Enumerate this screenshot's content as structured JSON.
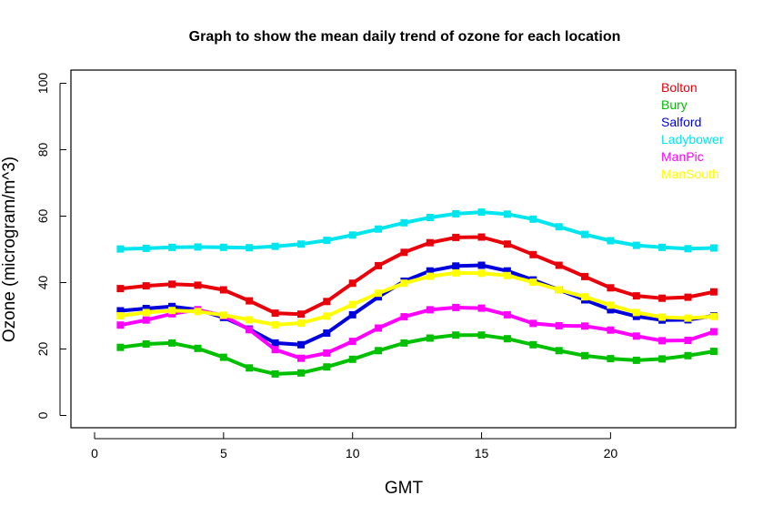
{
  "chart_data": {
    "type": "line",
    "title": "Graph to show the mean daily trend of ozone for each location",
    "xlabel": "GMT",
    "ylabel": "Ozone (microgram/m^3)",
    "xlim": [
      0,
      25
    ],
    "ylim": [
      0,
      100
    ],
    "xticks": [
      "0",
      "5",
      "10",
      "15",
      "20"
    ],
    "yticks": [
      "0",
      "20",
      "40",
      "60",
      "80",
      "100"
    ],
    "grid": false,
    "legend_position": "top-right",
    "x": [
      1,
      2,
      3,
      4,
      5,
      6,
      7,
      8,
      9,
      10,
      11,
      12,
      13,
      14,
      15,
      16,
      17,
      18,
      19,
      20,
      21,
      22,
      23,
      24
    ],
    "series": [
      {
        "name": "Bolton",
        "color": "#e8000b",
        "values": [
          38.2,
          39.0,
          39.5,
          39.2,
          37.8,
          34.5,
          30.8,
          30.5,
          34.3,
          39.8,
          45.1,
          49.1,
          52.0,
          53.6,
          53.7,
          51.6,
          48.4,
          45.2,
          41.8,
          38.4,
          36.0,
          35.3,
          35.6,
          37.2
        ]
      },
      {
        "name": "Bury",
        "color": "#00c000",
        "values": [
          20.5,
          21.5,
          21.8,
          20.2,
          17.5,
          14.3,
          12.5,
          12.8,
          14.6,
          16.9,
          19.5,
          21.8,
          23.3,
          24.2,
          24.2,
          23.1,
          21.3,
          19.5,
          18.0,
          17.1,
          16.6,
          17.0,
          18.0,
          19.3
        ]
      },
      {
        "name": "Salford",
        "color": "#0000dd",
        "values": [
          31.5,
          32.2,
          32.8,
          31.8,
          29.5,
          26.0,
          21.8,
          21.3,
          24.8,
          30.3,
          35.7,
          40.4,
          43.5,
          45.0,
          45.2,
          43.5,
          40.8,
          37.8,
          34.8,
          31.8,
          29.8,
          28.7,
          28.8,
          30.0
        ]
      },
      {
        "name": "Ladybower",
        "color": "#00e5ee",
        "values": [
          50.1,
          50.3,
          50.6,
          50.7,
          50.6,
          50.5,
          50.9,
          51.6,
          52.7,
          54.3,
          56.1,
          58.0,
          59.6,
          60.7,
          61.2,
          60.6,
          59.1,
          56.8,
          54.5,
          52.6,
          51.2,
          50.6,
          50.2,
          50.4
        ]
      },
      {
        "name": "ManPic",
        "color": "#ff00ff",
        "values": [
          27.2,
          28.7,
          30.6,
          31.8,
          30.0,
          25.8,
          19.8,
          17.2,
          18.8,
          22.3,
          26.3,
          29.7,
          31.8,
          32.5,
          32.3,
          30.3,
          27.7,
          27.0,
          26.9,
          25.7,
          23.9,
          22.5,
          22.6,
          25.2
        ]
      },
      {
        "name": "ManSouth",
        "color": "#ffff00",
        "values": [
          30.0,
          31.0,
          31.6,
          31.3,
          30.2,
          28.8,
          27.3,
          27.8,
          29.9,
          33.4,
          36.8,
          39.8,
          41.9,
          42.9,
          42.8,
          42.1,
          40.1,
          37.8,
          35.7,
          33.2,
          31.0,
          29.6,
          29.3,
          29.8
        ]
      }
    ]
  }
}
